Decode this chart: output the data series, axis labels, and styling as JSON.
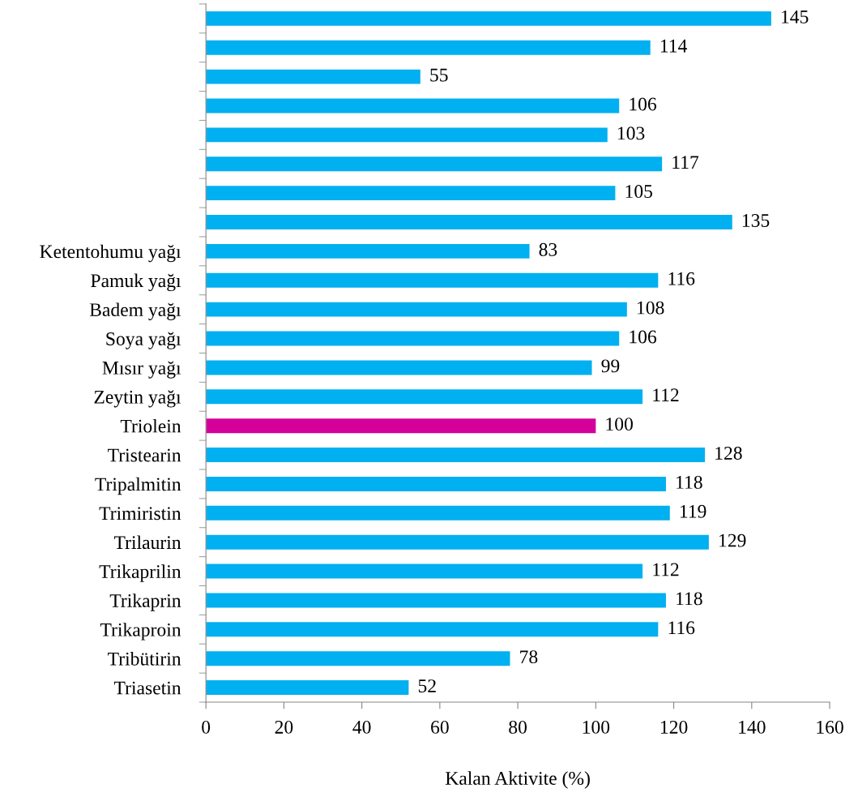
{
  "chart_data": {
    "type": "bar",
    "orientation": "horizontal",
    "xlabel": "Kalan Aktivite (%)",
    "categories": [
      null,
      null,
      null,
      null,
      null,
      null,
      null,
      null,
      "Ketentohumu yağı",
      "Pamuk yağı",
      "Badem yağı",
      "Soya yağı",
      "Mısır yağı",
      "Zeytin yağı",
      "Triolein",
      "Tristearin",
      "Tripalmitin",
      "Trimiristin",
      "Trilaurin",
      "Trikaprilin",
      "Trikaprin",
      "Trikaproin",
      "Tribütirin",
      "Triasetin"
    ],
    "values": [
      145,
      114,
      55,
      106,
      103,
      117,
      105,
      135,
      83,
      116,
      108,
      106,
      99,
      112,
      100,
      128,
      118,
      119,
      129,
      112,
      118,
      116,
      78,
      52
    ],
    "colors": [
      "#00b0f0",
      "#00b0f0",
      "#00b0f0",
      "#00b0f0",
      "#00b0f0",
      "#00b0f0",
      "#00b0f0",
      "#00b0f0",
      "#00b0f0",
      "#00b0f0",
      "#00b0f0",
      "#00b0f0",
      "#00b0f0",
      "#00b0f0",
      "#d4009a",
      "#00b0f0",
      "#00b0f0",
      "#00b0f0",
      "#00b0f0",
      "#00b0f0",
      "#00b0f0",
      "#00b0f0",
      "#00b0f0",
      "#00b0f0"
    ],
    "xlim": [
      0,
      160
    ],
    "xticks": [
      0,
      20,
      40,
      60,
      80,
      100,
      120,
      140,
      160
    ],
    "data_labels": true,
    "grid": false
  }
}
